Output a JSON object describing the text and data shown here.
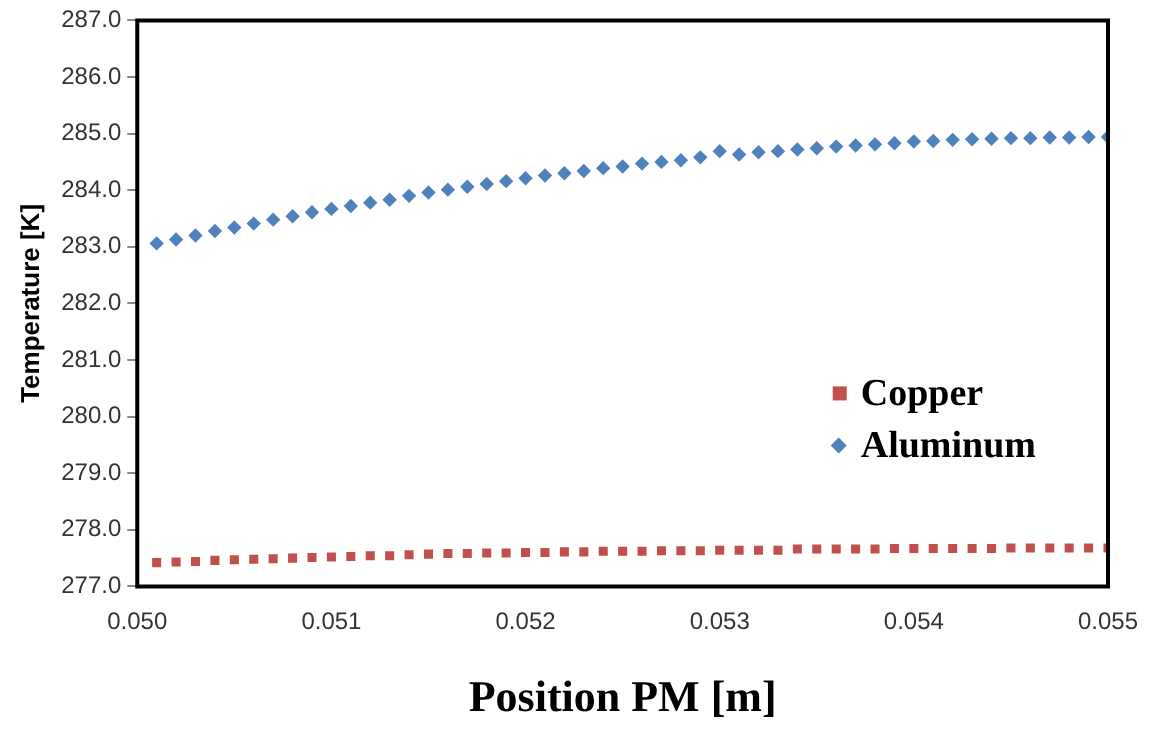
{
  "chart_data": {
    "type": "scatter",
    "xlabel": "Position PM [m]",
    "ylabel": "Temperature [K]",
    "x": [
      0.0501,
      0.0502,
      0.0503,
      0.0504,
      0.0505,
      0.0506,
      0.0507,
      0.0508,
      0.0509,
      0.051,
      0.0511,
      0.0512,
      0.0513,
      0.0514,
      0.0515,
      0.0516,
      0.0517,
      0.0518,
      0.0519,
      0.052,
      0.0521,
      0.0522,
      0.0523,
      0.0524,
      0.0525,
      0.0526,
      0.0527,
      0.0528,
      0.0529,
      0.053,
      0.0531,
      0.0532,
      0.0533,
      0.0534,
      0.0535,
      0.0536,
      0.0537,
      0.0538,
      0.0539,
      0.054,
      0.0541,
      0.0542,
      0.0543,
      0.0544,
      0.0545,
      0.0546,
      0.0547,
      0.0548,
      0.0549,
      0.055
    ],
    "series": [
      {
        "name": "Copper",
        "color": "#c0504d",
        "marker": "square",
        "values": [
          277.42,
          277.43,
          277.44,
          277.46,
          277.47,
          277.48,
          277.49,
          277.5,
          277.51,
          277.52,
          277.53,
          277.54,
          277.54,
          277.56,
          277.57,
          277.58,
          277.58,
          277.59,
          277.59,
          277.6,
          277.6,
          277.61,
          277.61,
          277.62,
          277.62,
          277.62,
          277.63,
          277.63,
          277.63,
          277.64,
          277.64,
          277.64,
          277.64,
          277.66,
          277.66,
          277.66,
          277.66,
          277.66,
          277.67,
          277.67,
          277.67,
          277.67,
          277.67,
          277.67,
          277.68,
          277.68,
          277.68,
          277.68,
          277.68,
          277.68
        ]
      },
      {
        "name": "Aluminum",
        "color": "#4f81bd",
        "marker": "diamond",
        "values": [
          283.06,
          283.13,
          283.2,
          283.28,
          283.34,
          283.41,
          283.48,
          283.54,
          283.61,
          283.67,
          283.72,
          283.78,
          283.83,
          283.9,
          283.96,
          284.01,
          284.06,
          284.11,
          284.16,
          284.21,
          284.26,
          284.3,
          284.34,
          284.39,
          284.42,
          284.47,
          284.5,
          284.53,
          284.58,
          284.69,
          284.63,
          284.67,
          284.69,
          284.72,
          284.74,
          284.77,
          284.79,
          284.81,
          284.83,
          284.86,
          284.87,
          284.89,
          284.9,
          284.91,
          284.92,
          284.92,
          284.93,
          284.93,
          284.94,
          284.94
        ]
      }
    ],
    "xlim": [
      0.05,
      0.055
    ],
    "xticks": [
      {
        "value": 0.05,
        "label": "0.050"
      },
      0.051,
      0.052,
      0.053,
      0.054,
      {
        "value": 0.055,
        "label": "0.055"
      }
    ],
    "ylim": [
      277,
      287
    ],
    "yticks": [
      {
        "value": 277,
        "label": "277.0"
      },
      {
        "value": 278,
        "label": "278.0"
      },
      {
        "value": 279,
        "label": "279.0"
      },
      {
        "value": 280,
        "label": "280.0"
      },
      {
        "value": 281,
        "label": "281.0"
      },
      {
        "value": 282,
        "label": "282.0"
      },
      {
        "value": 283,
        "label": "283.0"
      },
      {
        "value": 284,
        "label": "284.0"
      },
      {
        "value": 285,
        "label": "285.0"
      },
      {
        "value": 286,
        "label": "286.0"
      },
      {
        "value": 287,
        "label": "287.0"
      }
    ],
    "grid": false,
    "legend": "center right"
  }
}
